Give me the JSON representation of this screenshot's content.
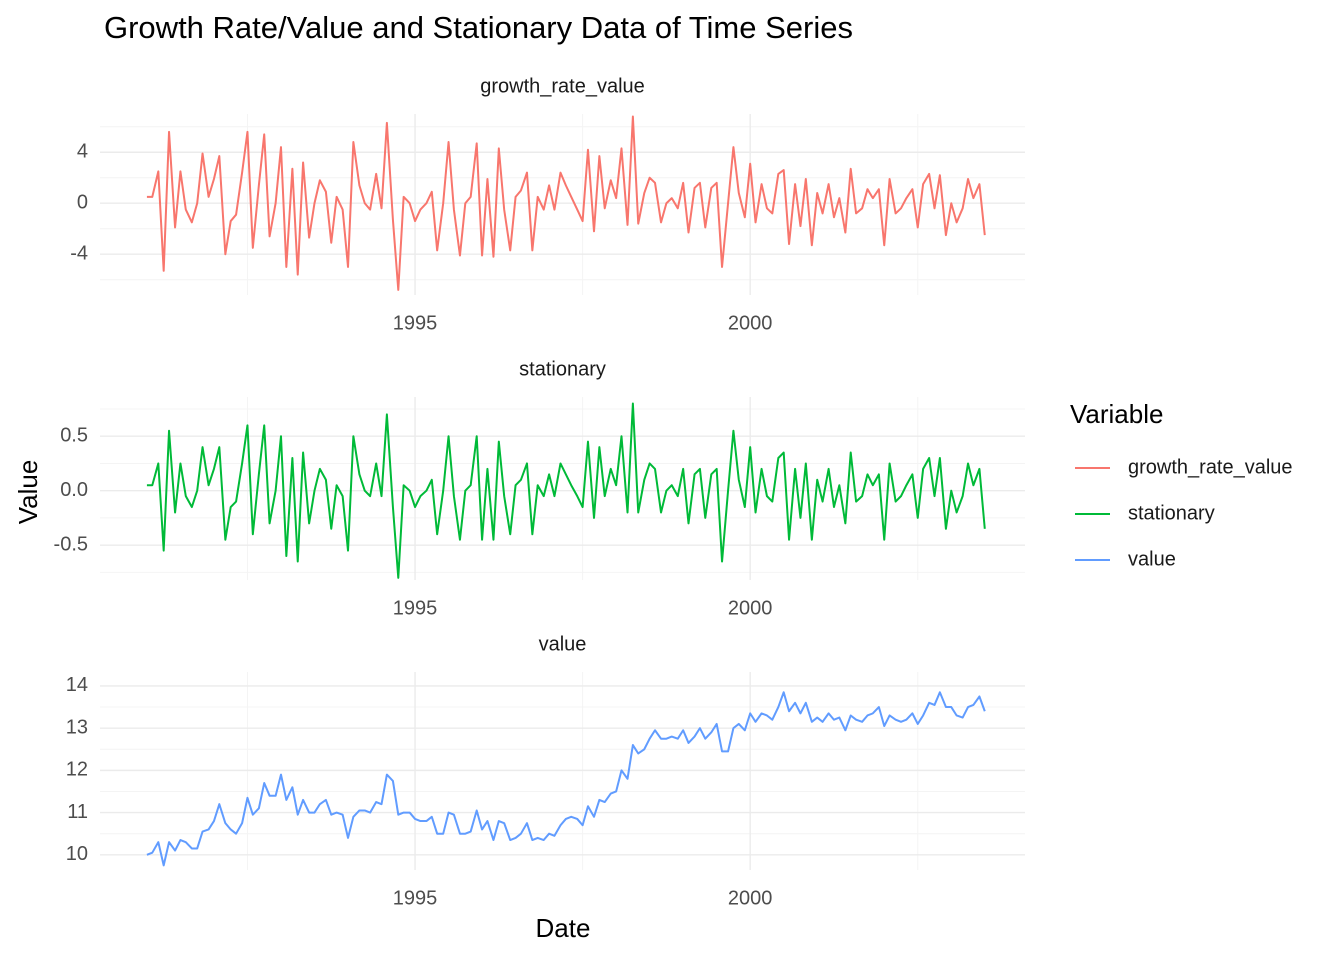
{
  "chart_data": {
    "type": "line",
    "title": "Growth Rate/Value and Stationary Data of Time Series",
    "x_label": "Date",
    "y_label": "Value",
    "legend_title": "Variable",
    "grid": true,
    "xlim": [
      1990.3,
      2004.1
    ],
    "xticks": [
      1995,
      2000
    ],
    "x_minor_ticks": [
      1992.5,
      1997.5,
      2002.5
    ],
    "x": [
      1991,
      1991.08,
      1991.17,
      1991.25,
      1991.33,
      1991.42,
      1991.5,
      1991.58,
      1991.67,
      1991.75,
      1991.83,
      1991.92,
      1992,
      1992.08,
      1992.17,
      1992.25,
      1992.33,
      1992.42,
      1992.5,
      1992.58,
      1992.67,
      1992.75,
      1992.83,
      1992.92,
      1993,
      1993.08,
      1993.17,
      1993.25,
      1993.33,
      1993.42,
      1993.5,
      1993.58,
      1993.67,
      1993.75,
      1993.83,
      1993.92,
      1994,
      1994.08,
      1994.17,
      1994.25,
      1994.33,
      1994.42,
      1994.5,
      1994.58,
      1994.67,
      1994.75,
      1994.83,
      1994.92,
      1995,
      1995.08,
      1995.17,
      1995.25,
      1995.33,
      1995.42,
      1995.5,
      1995.58,
      1995.67,
      1995.75,
      1995.83,
      1995.92,
      1996,
      1996.08,
      1996.17,
      1996.25,
      1996.33,
      1996.42,
      1996.5,
      1996.58,
      1996.67,
      1996.75,
      1996.83,
      1996.92,
      1997,
      1997.08,
      1997.17,
      1997.25,
      1997.33,
      1997.42,
      1997.5,
      1997.58,
      1997.67,
      1997.75,
      1997.83,
      1997.92,
      1998,
      1998.08,
      1998.17,
      1998.25,
      1998.33,
      1998.42,
      1998.5,
      1998.58,
      1998.67,
      1998.75,
      1998.83,
      1998.92,
      1999,
      1999.08,
      1999.17,
      1999.25,
      1999.33,
      1999.42,
      1999.5,
      1999.58,
      1999.67,
      1999.75,
      1999.83,
      1999.92,
      2000,
      2000.08,
      2000.17,
      2000.25,
      2000.33,
      2000.42,
      2000.5,
      2000.58,
      2000.67,
      2000.75,
      2000.83,
      2000.92,
      2001,
      2001.08,
      2001.17,
      2001.25,
      2001.33,
      2001.42,
      2001.5,
      2001.58,
      2001.67,
      2001.75,
      2001.83,
      2001.92,
      2002,
      2002.08,
      2002.17,
      2002.25,
      2002.33,
      2002.42,
      2002.5,
      2002.58,
      2002.67,
      2002.75,
      2002.83,
      2002.92,
      2003,
      2003.08,
      2003.17,
      2003.25,
      2003.33,
      2003.42,
      2003.5
    ],
    "series": [
      {
        "name": "growth_rate_value",
        "color": "#F8766D",
        "ylim": [
          -7.2,
          7
        ],
        "yticks": [
          -4,
          0,
          4
        ],
        "y_minor_ticks": [
          -6,
          -2,
          2,
          6
        ],
        "values": [
          0.5,
          0.5,
          2.5,
          -5.3,
          5.6,
          -1.9,
          2.5,
          -0.5,
          -1.5,
          0,
          3.9,
          0.5,
          1.9,
          3.7,
          -4.0,
          -1.4,
          -0.9,
          2.4,
          5.6,
          -3.5,
          1.4,
          5.4,
          -2.6,
          0,
          4.4,
          -5.0,
          2.7,
          -5.6,
          3.2,
          -2.7,
          0,
          1.8,
          0.9,
          -3.1,
          0.5,
          -0.5,
          -5.0,
          4.8,
          1.4,
          0,
          -0.5,
          2.3,
          -0.4,
          6.3,
          -1.3,
          -6.8,
          0.5,
          0,
          -1.4,
          -0.5,
          0,
          0.9,
          -3.7,
          0,
          4.8,
          -0.5,
          -4.1,
          0,
          0.5,
          4.7,
          -4.1,
          1.9,
          -4.2,
          4.3,
          -0.5,
          -3.7,
          0.5,
          1.0,
          2.4,
          -3.7,
          0.5,
          -0.5,
          1.4,
          -0.5,
          2.4,
          1.4,
          0.5,
          -0.5,
          -1.4,
          4.2,
          -2.2,
          3.7,
          -0.4,
          1.8,
          0.4,
          4.3,
          -1.7,
          6.8,
          -1.6,
          0.8,
          2.0,
          1.6,
          -1.5,
          0,
          0.4,
          -0.4,
          1.6,
          -2.3,
          1.2,
          1.6,
          -1.9,
          1.2,
          1.6,
          -5.0,
          0,
          4.4,
          0.8,
          -1.1,
          3.1,
          -1.5,
          1.5,
          -0.4,
          -0.8,
          2.3,
          2.6,
          -3.2,
          1.5,
          -1.8,
          1.9,
          -3.3,
          0.8,
          -0.8,
          1.5,
          -1.1,
          0.4,
          -2.3,
          2.7,
          -0.8,
          -0.4,
          1.1,
          0.4,
          1.1,
          -3.3,
          1.9,
          -0.8,
          -0.4,
          0.4,
          1.1,
          -1.9,
          1.5,
          2.3,
          -0.4,
          2.2,
          -2.5,
          0,
          -1.5,
          -0.4,
          1.9,
          0.4,
          1.5,
          -2.5
        ]
      },
      {
        "name": "stationary",
        "color": "#00BA38",
        "ylim": [
          -0.82,
          0.86
        ],
        "yticks": [
          -0.5,
          {
            "value": 0,
            "label": "0.0"
          },
          0.5
        ],
        "y_minor_ticks": [
          -0.75,
          -0.25,
          0.25,
          0.75
        ],
        "values": [
          0.05,
          0.05,
          0.25,
          -0.55,
          0.55,
          -0.2,
          0.25,
          -0.05,
          -0.15,
          0,
          0.4,
          0.05,
          0.2,
          0.4,
          -0.45,
          -0.15,
          -0.1,
          0.25,
          0.6,
          -0.4,
          0.15,
          0.6,
          -0.3,
          0,
          0.5,
          -0.6,
          0.3,
          -0.65,
          0.35,
          -0.3,
          0,
          0.2,
          0.1,
          -0.35,
          0.05,
          -0.05,
          -0.55,
          0.5,
          0.15,
          0,
          -0.05,
          0.25,
          -0.05,
          0.7,
          -0.15,
          -0.8,
          0.05,
          0,
          -0.15,
          -0.05,
          0,
          0.1,
          -0.4,
          0,
          0.5,
          -0.05,
          -0.45,
          0,
          0.05,
          0.5,
          -0.45,
          0.2,
          -0.45,
          0.45,
          -0.05,
          -0.4,
          0.05,
          0.1,
          0.25,
          -0.4,
          0.05,
          -0.05,
          0.15,
          -0.05,
          0.25,
          0.15,
          0.05,
          -0.05,
          -0.15,
          0.45,
          -0.25,
          0.4,
          -0.05,
          0.2,
          0.05,
          0.5,
          -0.2,
          0.8,
          -0.2,
          0.1,
          0.25,
          0.2,
          -0.2,
          0,
          0.05,
          -0.05,
          0.2,
          -0.3,
          0.15,
          0.2,
          -0.25,
          0.15,
          0.2,
          -0.65,
          0,
          0.55,
          0.1,
          -0.15,
          0.4,
          -0.2,
          0.2,
          -0.05,
          -0.1,
          0.3,
          0.35,
          -0.45,
          0.2,
          -0.25,
          0.25,
          -0.45,
          0.1,
          -0.1,
          0.2,
          -0.15,
          0.05,
          -0.3,
          0.35,
          -0.1,
          -0.05,
          0.15,
          0.05,
          0.15,
          -0.45,
          0.25,
          -0.1,
          -0.05,
          0.05,
          0.15,
          -0.25,
          0.2,
          0.3,
          -0.05,
          0.3,
          -0.35,
          0,
          -0.2,
          -0.05,
          0.25,
          0.05,
          0.2,
          -0.35
        ]
      },
      {
        "name": "value",
        "color": "#619CFF",
        "ylim": [
          9.64,
          14.33
        ],
        "yticks": [
          10,
          11,
          12,
          13,
          14
        ],
        "y_minor_ticks": [
          10.5,
          11.5,
          12.5,
          13.5
        ],
        "values": [
          10.0,
          10.05,
          10.3,
          9.75,
          10.3,
          10.1,
          10.35,
          10.3,
          10.15,
          10.15,
          10.55,
          10.6,
          10.8,
          11.2,
          10.75,
          10.6,
          10.5,
          10.75,
          11.35,
          10.95,
          11.1,
          11.7,
          11.4,
          11.4,
          11.9,
          11.3,
          11.6,
          10.95,
          11.3,
          11.0,
          11.0,
          11.2,
          11.3,
          10.95,
          11.0,
          10.95,
          10.4,
          10.9,
          11.05,
          11.05,
          11.0,
          11.25,
          11.2,
          11.9,
          11.75,
          10.95,
          11.0,
          11.0,
          10.85,
          10.8,
          10.8,
          10.9,
          10.5,
          10.5,
          11.0,
          10.95,
          10.5,
          10.5,
          10.55,
          11.05,
          10.6,
          10.8,
          10.35,
          10.8,
          10.75,
          10.35,
          10.4,
          10.5,
          10.75,
          10.35,
          10.4,
          10.35,
          10.5,
          10.45,
          10.7,
          10.85,
          10.9,
          10.85,
          10.7,
          11.15,
          10.9,
          11.3,
          11.25,
          11.45,
          11.5,
          12.0,
          11.8,
          12.6,
          12.4,
          12.5,
          12.75,
          12.95,
          12.75,
          12.75,
          12.8,
          12.75,
          12.95,
          12.65,
          12.8,
          13.0,
          12.75,
          12.9,
          13.1,
          12.45,
          12.45,
          13.0,
          13.1,
          12.95,
          13.35,
          13.15,
          13.35,
          13.3,
          13.2,
          13.5,
          13.85,
          13.4,
          13.6,
          13.35,
          13.6,
          13.15,
          13.25,
          13.15,
          13.35,
          13.2,
          13.25,
          12.95,
          13.3,
          13.2,
          13.15,
          13.3,
          13.35,
          13.5,
          13.05,
          13.3,
          13.2,
          13.15,
          13.2,
          13.35,
          13.1,
          13.3,
          13.6,
          13.55,
          13.85,
          13.5,
          13.5,
          13.3,
          13.25,
          13.5,
          13.55,
          13.75,
          13.4
        ]
      }
    ]
  }
}
